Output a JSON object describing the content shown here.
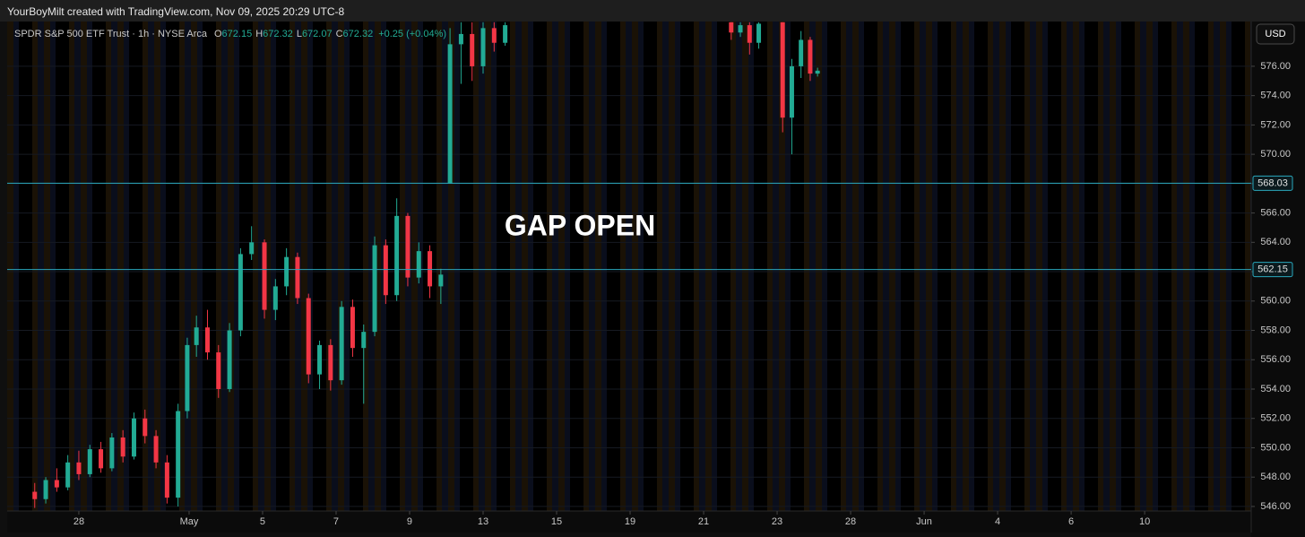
{
  "header": {
    "title": "YourBoyMilt created with TradingView.com, Nov 09, 2025 20:29 UTC-8"
  },
  "chart_data": {
    "type": "candlestick",
    "symbol": "SPDR S&P 500 ETF Trust · 1h · NYSE Arca",
    "ohlc_legend": [
      {
        "key": "O",
        "value": 672.15
      },
      {
        "key": "H",
        "value": 672.32
      },
      {
        "key": "L",
        "value": 672.07
      },
      {
        "key": "C",
        "value": 672.32
      }
    ],
    "change": "+0.25 (+0.04%)",
    "currency": "USD",
    "annotation": "GAP OPEN",
    "hlines": [
      568.03,
      562.15
    ],
    "hline_color": "#2aa8bd",
    "up_color": "#22ab94",
    "down_color": "#f23645",
    "grid": true,
    "xlim": [
      -1.95,
      31.9
    ],
    "ylim": [
      545.69,
      579.05
    ],
    "yticks": [
      {
        "value": 546,
        "label": "546.00"
      },
      {
        "value": 548,
        "label": "548.00"
      },
      {
        "value": 550,
        "label": "550.00"
      },
      {
        "value": 552,
        "label": "552.00"
      },
      {
        "value": 554,
        "label": "554.00"
      },
      {
        "value": 556,
        "label": "556.00"
      },
      {
        "value": 558,
        "label": "558.00"
      },
      {
        "value": 560,
        "label": "560.00"
      },
      {
        "value": 562,
        "label": "562.00"
      },
      {
        "value": 564,
        "label": "564.00"
      },
      {
        "value": 566,
        "label": "566.00"
      },
      {
        "value": 568,
        "label": "568.00"
      },
      {
        "value": 570,
        "label": "570.00"
      },
      {
        "value": 572,
        "label": "572.00"
      },
      {
        "value": 574,
        "label": "574.00"
      },
      {
        "value": 576,
        "label": "576.00"
      }
    ],
    "xticks": [
      {
        "value": 0,
        "label": "28"
      },
      {
        "value": 3,
        "label": "May"
      },
      {
        "value": 5,
        "label": "5"
      },
      {
        "value": 7,
        "label": "7"
      },
      {
        "value": 9,
        "label": "9"
      },
      {
        "value": 11,
        "label": "13"
      },
      {
        "value": 13,
        "label": "15"
      },
      {
        "value": 15,
        "label": "19"
      },
      {
        "value": 17,
        "label": "21"
      },
      {
        "value": 19,
        "label": "23"
      },
      {
        "value": 21,
        "label": "28"
      },
      {
        "value": 23,
        "label": "Jun"
      },
      {
        "value": 25,
        "label": "4"
      },
      {
        "value": 27,
        "label": "6"
      },
      {
        "value": 29,
        "label": "10"
      }
    ],
    "x": [
      -1.2,
      -0.9,
      -0.6,
      -0.3,
      0.0,
      0.3,
      0.6,
      0.9,
      1.2,
      1.5,
      1.8,
      2.1,
      2.4,
      2.7,
      2.95,
      3.2,
      3.5,
      3.8,
      4.1,
      4.4,
      4.7,
      5.05,
      5.35,
      5.65,
      5.95,
      6.25,
      6.55,
      6.85,
      7.15,
      7.45,
      7.75,
      8.05,
      8.35,
      8.65,
      8.95,
      9.25,
      9.55,
      9.85,
      10.1,
      10.4,
      10.7,
      11.0,
      11.3,
      11.6,
      17.75,
      18.0,
      18.25,
      18.5,
      19.15,
      19.4,
      19.65,
      19.9,
      20.1
    ],
    "open": [
      547.0,
      546.5,
      547.8,
      547.3,
      549.0,
      548.2,
      549.9,
      548.6,
      550.7,
      549.4,
      552.0,
      550.8,
      549.0,
      546.6,
      552.5,
      557.0,
      558.2,
      556.5,
      554.0,
      558.0,
      563.2,
      564.0,
      559.4,
      561.0,
      563.0,
      560.2,
      555.0,
      557.0,
      554.6,
      559.6,
      556.8,
      557.9,
      563.8,
      560.4,
      565.8,
      561.6,
      563.4,
      561.0,
      568.0,
      577.5,
      578.2,
      576.0,
      578.6,
      577.6,
      579.0,
      578.3,
      578.8,
      577.6,
      579.0,
      572.5,
      576.0,
      577.8,
      575.5
    ],
    "high": [
      547.6,
      548.0,
      548.6,
      549.5,
      549.8,
      550.2,
      550.4,
      551.0,
      551.2,
      552.4,
      552.6,
      551.2,
      549.5,
      553.0,
      557.5,
      559.0,
      559.4,
      557.0,
      558.5,
      563.6,
      565.1,
      564.2,
      561.5,
      563.6,
      563.3,
      560.5,
      557.3,
      557.4,
      560.0,
      560.1,
      558.4,
      564.4,
      564.2,
      567.0,
      566.0,
      564.0,
      563.8,
      562.2,
      578.6,
      579.0,
      579.0,
      579.0,
      579.0,
      579.0,
      579.0,
      579.0,
      579.0,
      579.0,
      579.0,
      576.5,
      578.4,
      578.0,
      575.9
    ],
    "low": [
      545.9,
      546.2,
      547.0,
      547.1,
      547.8,
      548.0,
      548.3,
      548.4,
      549.0,
      549.2,
      550.3,
      548.6,
      546.2,
      546.0,
      552.0,
      556.2,
      556.0,
      553.4,
      553.8,
      557.6,
      562.8,
      558.8,
      558.7,
      560.4,
      559.8,
      554.4,
      554.0,
      553.9,
      554.3,
      556.2,
      553.0,
      557.6,
      559.8,
      560.0,
      561.0,
      561.2,
      560.2,
      559.8,
      568.0,
      574.8,
      575.0,
      575.5,
      577.0,
      577.4,
      577.8,
      578.0,
      576.8,
      577.2,
      571.5,
      570.0,
      575.2,
      575.0,
      575.3
    ],
    "close": [
      546.5,
      547.8,
      547.3,
      549.0,
      548.2,
      549.9,
      548.6,
      550.7,
      549.4,
      552.0,
      550.8,
      549.0,
      546.6,
      552.5,
      557.0,
      558.2,
      556.5,
      554.0,
      558.0,
      563.2,
      564.0,
      559.4,
      561.0,
      563.0,
      560.2,
      555.0,
      557.0,
      554.6,
      559.6,
      556.8,
      557.9,
      563.8,
      560.4,
      565.8,
      561.6,
      563.4,
      561.0,
      561.8,
      577.5,
      578.2,
      576.0,
      578.6,
      577.6,
      578.8,
      578.3,
      578.8,
      577.6,
      578.9,
      572.5,
      576.0,
      577.8,
      575.5,
      575.7
    ]
  }
}
